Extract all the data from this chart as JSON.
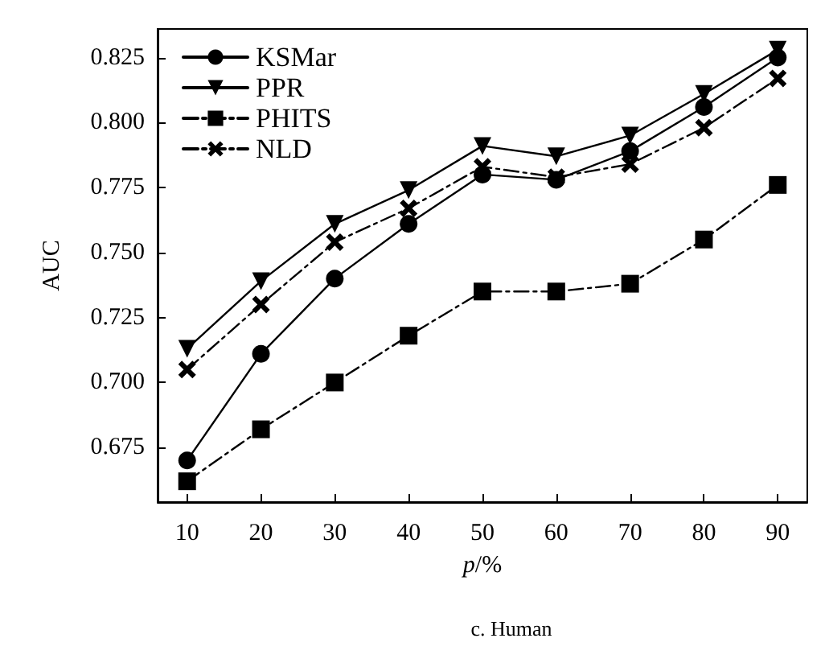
{
  "chart_data": {
    "type": "line",
    "title": "c. Human",
    "xlabel": "p/%",
    "ylabel": "AUC",
    "x": [
      10,
      20,
      30,
      40,
      50,
      60,
      70,
      80,
      90
    ],
    "xlim": [
      6,
      94
    ],
    "xticks": [
      10,
      20,
      30,
      40,
      50,
      60,
      70,
      80,
      90
    ],
    "ylim": [
      0.654,
      0.836
    ],
    "yticks": [
      0.675,
      {
        "value": 0.7,
        "label": "0.700"
      },
      0.725,
      {
        "value": 0.75,
        "label": "0.750"
      },
      0.775,
      {
        "value": 0.8,
        "label": "0.800"
      },
      0.825
    ],
    "grid": false,
    "legend": "top left",
    "series": [
      {
        "name": "KSMar",
        "color": "#000000",
        "marker": "circle",
        "line_style": "solid",
        "values": [
          0.67,
          0.711,
          0.74,
          0.761,
          0.78,
          0.778,
          0.789,
          0.806,
          0.825
        ]
      },
      {
        "name": "PPR",
        "color": "#000000",
        "marker": "triangle",
        "line_style": "solid",
        "values": [
          0.713,
          0.739,
          0.761,
          0.774,
          0.791,
          0.787,
          0.795,
          0.811,
          0.828
        ]
      },
      {
        "name": "PHITS",
        "color": "#000000",
        "marker": "square",
        "line_style": "dashed",
        "values": [
          0.662,
          0.682,
          0.7,
          0.718,
          0.735,
          0.735,
          0.738,
          0.755,
          0.776
        ]
      },
      {
        "name": "NLD",
        "color": "#000000",
        "marker": "cross",
        "line_style": "dashed",
        "values": [
          0.705,
          0.73,
          0.754,
          0.767,
          0.783,
          0.779,
          0.784,
          0.798,
          0.817
        ]
      }
    ]
  }
}
